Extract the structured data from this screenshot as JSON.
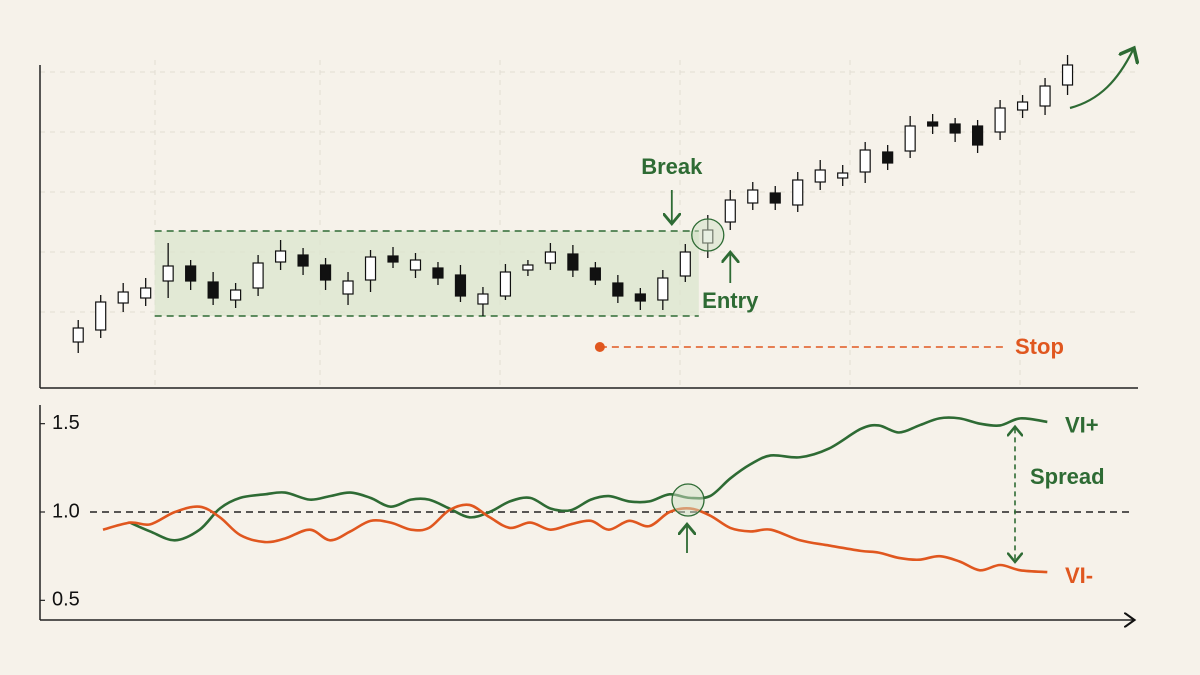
{
  "chart_data": [
    {
      "type": "candlestick",
      "open": [
        4.3,
        5.5,
        8.2,
        8.7,
        10.4,
        11.9,
        10.3,
        8.5,
        9.7,
        12.3,
        13.0,
        12.0,
        9.1,
        10.5,
        12.9,
        11.5,
        11.7,
        11.0,
        8.1,
        8.9,
        11.5,
        12.2,
        13.1,
        11.7,
        10.2,
        9.1,
        8.5,
        10.9,
        14.2,
        16.3,
        18.2,
        19.2,
        18.0,
        20.3,
        20.7,
        21.3,
        23.3,
        23.4,
        26.3,
        26.1,
        25.9,
        25.3,
        27.5,
        27.9,
        30.0
      ],
      "high": [
        6.5,
        9.0,
        10.2,
        10.7,
        14.2,
        12.5,
        11.3,
        10.2,
        13.0,
        14.5,
        13.7,
        12.7,
        11.3,
        13.5,
        13.8,
        13.2,
        12.3,
        12.0,
        9.8,
        12.1,
        12.5,
        14.2,
        14.0,
        12.3,
        11.0,
        9.7,
        11.5,
        14.1,
        17.0,
        19.5,
        20.3,
        19.9,
        21.3,
        22.5,
        22.0,
        24.3,
        24.0,
        26.9,
        27.1,
        26.7,
        26.5,
        28.5,
        29.0,
        30.7,
        33.0
      ],
      "low": [
        3.2,
        4.7,
        7.3,
        7.9,
        8.7,
        9.5,
        8.0,
        7.7,
        8.9,
        11.5,
        11.0,
        9.5,
        8.0,
        9.3,
        11.7,
        10.7,
        10.0,
        8.3,
        6.9,
        8.5,
        10.9,
        11.5,
        10.8,
        10.0,
        8.2,
        7.5,
        7.5,
        10.3,
        12.7,
        15.5,
        17.5,
        17.5,
        17.3,
        19.5,
        19.9,
        20.2,
        21.5,
        22.7,
        25.1,
        24.3,
        23.2,
        24.5,
        26.7,
        27.0,
        29.0
      ],
      "close": [
        5.7,
        8.3,
        9.3,
        9.7,
        11.9,
        10.4,
        8.7,
        9.5,
        12.2,
        13.4,
        11.9,
        10.5,
        10.4,
        12.8,
        12.3,
        12.5,
        10.7,
        8.9,
        9.1,
        11.3,
        12.0,
        13.3,
        11.5,
        10.5,
        8.9,
        8.4,
        10.7,
        13.3,
        15.5,
        18.5,
        19.5,
        18.2,
        20.5,
        21.5,
        21.2,
        23.5,
        22.2,
        25.9,
        25.9,
        25.2,
        24.0,
        27.7,
        28.3,
        29.9,
        32.0
      ],
      "up_color": "#ffffff",
      "down_color": "#111111",
      "xlim": [
        -1.7,
        47
      ],
      "ylim": [
        0,
        32.5
      ],
      "range": [
        6.9,
        15.4
      ],
      "range_color": "#2e6b34",
      "stop": 3.8,
      "stop_color": "#e0571f",
      "annotations": {
        "break": "Break",
        "entry": "Entry",
        "stop": "Stop"
      }
    },
    {
      "type": "line",
      "x": [
        1.1,
        2.3,
        3.2,
        4.3,
        5.4,
        6.3,
        7.2,
        8.3,
        9.2,
        10.3,
        11.2,
        12.1,
        13.0,
        13.9,
        14.8,
        15.6,
        16.5,
        17.4,
        18.3,
        19.2,
        20.1,
        21.0,
        21.9,
        22.8,
        23.6,
        24.5,
        25.4,
        26.3,
        27.2,
        28.1,
        29.0,
        29.9,
        30.8,
        32.1,
        33.4,
        34.8,
        35.6,
        36.5,
        37.4,
        38.3,
        39.2,
        40.1,
        41.0,
        41.9,
        43.1
      ],
      "series": [
        {
          "name": "VI+",
          "color": "#2e6b34",
          "values": [
            null,
            0.94,
            0.89,
            0.84,
            0.9,
            1.02,
            1.08,
            1.1,
            1.11,
            1.07,
            1.09,
            1.11,
            1.08,
            1.03,
            1.07,
            1.07,
            1.02,
            0.97,
            1.0,
            1.06,
            1.08,
            1.02,
            1.01,
            1.07,
            1.09,
            1.06,
            1.06,
            1.1,
            1.08,
            1.09,
            1.19,
            1.27,
            1.32,
            1.31,
            1.36,
            1.47,
            1.49,
            1.45,
            1.49,
            1.53,
            1.53,
            1.5,
            1.49,
            1.53,
            1.51
          ]
        },
        {
          "name": "VI-",
          "color": "#e0571f",
          "values": [
            0.9,
            0.94,
            0.93,
            1.0,
            1.03,
            0.97,
            0.87,
            0.83,
            0.85,
            0.9,
            0.84,
            0.89,
            0.95,
            0.94,
            0.9,
            0.91,
            1.01,
            1.04,
            0.97,
            0.91,
            0.94,
            0.9,
            0.93,
            0.95,
            0.9,
            0.95,
            0.92,
            1.0,
            1.02,
            0.98,
            0.91,
            0.89,
            0.9,
            0.84,
            0.81,
            0.78,
            0.77,
            0.74,
            0.73,
            0.75,
            0.72,
            0.67,
            0.7,
            0.67,
            0.66
          ]
        }
      ],
      "xlim": [
        -1.7,
        47
      ],
      "ylim": [
        0.4,
        1.6
      ],
      "yticks": [
        0.5,
        {
          "value": 1,
          "label": "1.0"
        },
        1.5
      ],
      "reference_line": 1,
      "annotation": "Spread"
    }
  ]
}
